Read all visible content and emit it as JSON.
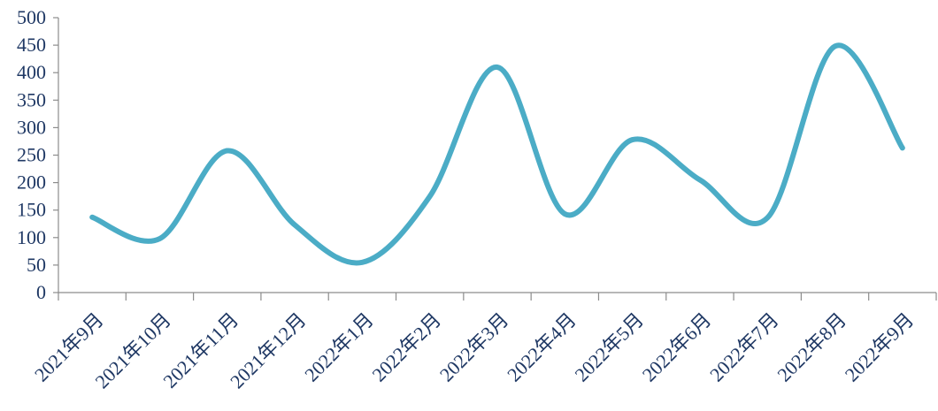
{
  "chart_data": {
    "type": "line",
    "title": "",
    "xlabel": "",
    "ylabel": "",
    "categories": [
      "2021年9月",
      "2021年10月",
      "2021年11月",
      "2021年12月",
      "2022年1月",
      "2022年2月",
      "2022年3月",
      "2022年4月",
      "2022年5月",
      "2022年6月",
      "2022年7月",
      "2022年8月",
      "2022年9月"
    ],
    "series": [
      {
        "values": [
          137,
          98,
          258,
          123,
          55,
          175,
          410,
          143,
          278,
          205,
          136,
          448,
          263
        ],
        "color": "#4bacc6"
      }
    ],
    "ylim": [
      0,
      500
    ],
    "yticks": [
      0,
      50,
      100,
      150,
      200,
      250,
      300,
      350,
      400,
      450,
      500
    ],
    "grid": false,
    "legend": "none",
    "smooth": true,
    "colors": {
      "axis": "#8c8c8c",
      "text": "#1f3864"
    }
  }
}
